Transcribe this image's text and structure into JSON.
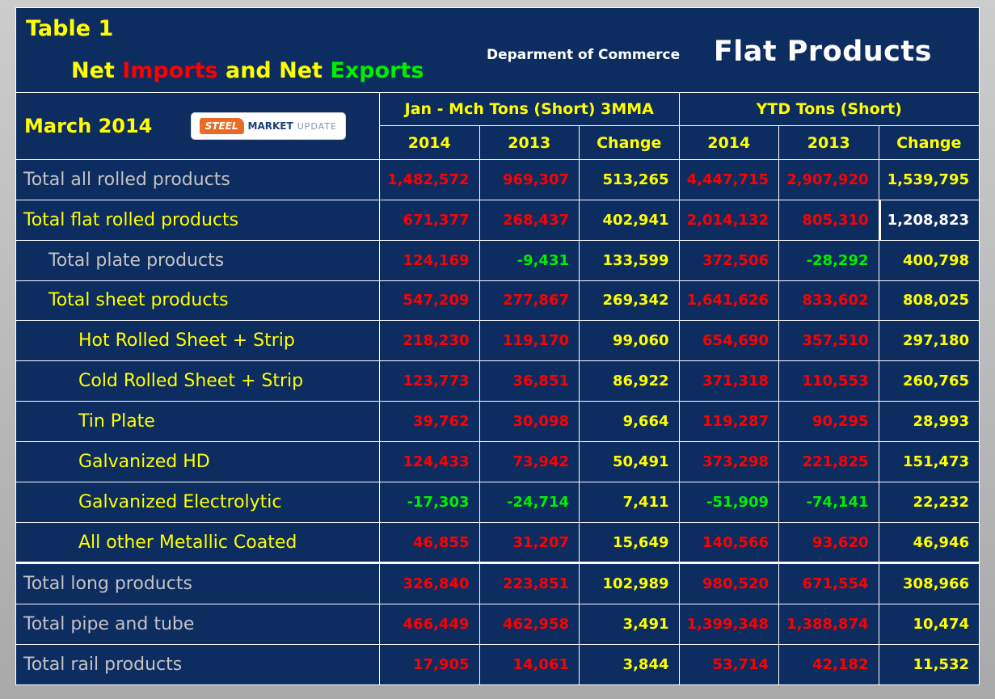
{
  "header": {
    "table_label": "Table 1",
    "subtitle_parts": [
      {
        "text": "Net ",
        "color": "#ffff00"
      },
      {
        "text": "Imports",
        "color": "#fe0000"
      },
      {
        "text": " and Net ",
        "color": "#ffff00"
      },
      {
        "text": "Exports",
        "color": "#00ee00"
      }
    ],
    "department": "Deparment of Commerce",
    "product_title": "Flat Products",
    "month_label": "March 2014",
    "logo": {
      "steel": "STEEL",
      "market": "MARKET",
      "update": "UPDATE"
    }
  },
  "columns": {
    "group_left": "Jan - Mch Tons (Short) 3MMA",
    "group_right": "YTD Tons (Short)",
    "sub_left": [
      "2014",
      "2013",
      "Change"
    ],
    "sub_right": [
      "2014",
      "2013",
      "Change"
    ]
  },
  "colors": {
    "background": "#0d2c60",
    "positive_value": "#fe0000",
    "negative_value": "#00ee00",
    "change_value": "#ffff00",
    "label_gray": "#c3c3c3",
    "label_yellow": "#ffff00"
  },
  "rows": [
    {
      "label": "Total all rolled products",
      "indent": 0,
      "label_color": "gray",
      "values": [
        "1,482,572",
        "969,307",
        "513,265",
        "4,447,715",
        "2,907,920",
        "1,539,795"
      ]
    },
    {
      "label": "Total flat rolled products",
      "indent": 0,
      "label_color": "yellow",
      "values": [
        "671,377",
        "268,437",
        "402,941",
        "2,014,132",
        "805,310",
        "1,208,823"
      ],
      "ytd_change_white": true
    },
    {
      "label": "Total plate products",
      "indent": 1,
      "label_color": "gray",
      "values": [
        "124,169",
        "-9,431",
        "133,599",
        "372,506",
        "-28,292",
        "400,798"
      ]
    },
    {
      "label": "Total sheet products",
      "indent": 1,
      "label_color": "yellow",
      "values": [
        "547,209",
        "277,867",
        "269,342",
        "1,641,626",
        "833,602",
        "808,025"
      ]
    },
    {
      "label": "Hot Rolled Sheet + Strip",
      "indent": 2,
      "label_color": "yellow",
      "values": [
        "218,230",
        "119,170",
        "99,060",
        "654,690",
        "357,510",
        "297,180"
      ]
    },
    {
      "label": "Cold Rolled Sheet + Strip",
      "indent": 2,
      "label_color": "yellow",
      "values": [
        "123,773",
        "36,851",
        "86,922",
        "371,318",
        "110,553",
        "260,765"
      ]
    },
    {
      "label": "Tin Plate",
      "indent": 2,
      "label_color": "yellow",
      "values": [
        "39,762",
        "30,098",
        "9,664",
        "119,287",
        "90,295",
        "28,993"
      ]
    },
    {
      "label": "Galvanized HD",
      "indent": 2,
      "label_color": "yellow",
      "values": [
        "124,433",
        "73,942",
        "50,491",
        "373,298",
        "221,825",
        "151,473"
      ]
    },
    {
      "label": "Galvanized Electrolytic",
      "indent": 2,
      "label_color": "yellow",
      "values": [
        "-17,303",
        "-24,714",
        "7,411",
        "-51,909",
        "-74,141",
        "22,232"
      ]
    },
    {
      "label": "All other Metallic Coated",
      "indent": 2,
      "label_color": "yellow",
      "values": [
        "46,855",
        "31,207",
        "15,649",
        "140,566",
        "93,620",
        "46,946"
      ]
    },
    {
      "label": "Total long products",
      "indent": 0,
      "label_color": "gray",
      "values": [
        "326,840",
        "223,851",
        "102,989",
        "980,520",
        "671,554",
        "308,966"
      ],
      "thick_top": true
    },
    {
      "label": "Total pipe and tube",
      "indent": 0,
      "label_color": "gray",
      "values": [
        "466,449",
        "462,958",
        "3,491",
        "1,399,348",
        "1,388,874",
        "10,474"
      ]
    },
    {
      "label": "Total rail products",
      "indent": 0,
      "label_color": "gray",
      "values": [
        "17,905",
        "14,061",
        "3,844",
        "53,714",
        "42,182",
        "11,532"
      ]
    }
  ]
}
